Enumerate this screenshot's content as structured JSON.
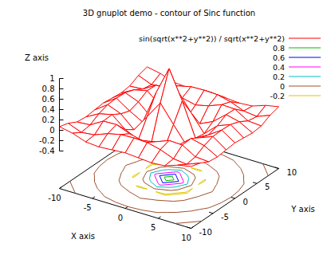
{
  "chart_data": {
    "type": "surface",
    "title": "3D gnuplot demo - contour of Sinc function",
    "x_label": "X axis",
    "y_label": "Y axis",
    "z_label": "Z axis",
    "x": [
      -10,
      -8,
      -6,
      -4,
      -2,
      0,
      2,
      4,
      6,
      8,
      10
    ],
    "y": [
      -10,
      -8,
      -6,
      -4,
      -2,
      0,
      2,
      4,
      6,
      8,
      10
    ],
    "xlim": [
      -10,
      10
    ],
    "ylim": [
      -10,
      10
    ],
    "zlim": [
      -0.4,
      1
    ],
    "xticks": [
      -10,
      -5,
      0,
      5,
      10
    ],
    "yticks": [
      -10,
      -5,
      0,
      5,
      10
    ],
    "zticks": [
      -0.4,
      -0.2,
      0,
      0.2,
      0.4,
      0.6,
      0.8,
      1
    ],
    "series": [
      {
        "name": "sin(sqrt(x**2+y**2)) / sqrt(x**2+y**2)",
        "color": "#ff0000",
        "values": [
          [
            0.07,
            0.02,
            -0.07,
            -0.09,
            -0.07,
            -0.05,
            -0.07,
            -0.09,
            -0.07,
            0.02,
            0.07
          ],
          [
            0.02,
            -0.08,
            -0.05,
            0.05,
            0.11,
            0.12,
            0.11,
            0.05,
            -0.05,
            -0.08,
            0.02
          ],
          [
            -0.07,
            -0.05,
            0.1,
            0.11,
            0.01,
            -0.05,
            0.01,
            0.11,
            0.1,
            -0.05,
            -0.07
          ],
          [
            -0.09,
            0.05,
            0.11,
            -0.1,
            -0.22,
            -0.19,
            -0.22,
            -0.1,
            0.11,
            0.05,
            -0.09
          ],
          [
            -0.07,
            0.11,
            0.01,
            -0.22,
            0.11,
            0.45,
            0.11,
            -0.22,
            0.01,
            0.11,
            -0.07
          ],
          [
            -0.05,
            0.12,
            -0.05,
            -0.19,
            0.45,
            1,
            0.45,
            -0.19,
            -0.05,
            0.12,
            -0.05
          ],
          [
            -0.07,
            0.11,
            0.01,
            -0.22,
            0.11,
            0.45,
            0.11,
            -0.22,
            0.01,
            0.11,
            -0.07
          ],
          [
            -0.09,
            0.05,
            0.11,
            -0.1,
            -0.22,
            -0.19,
            -0.22,
            -0.1,
            0.11,
            0.05,
            -0.09
          ],
          [
            -0.07,
            -0.05,
            0.1,
            0.11,
            0.01,
            -0.05,
            0.01,
            0.11,
            0.1,
            -0.05,
            -0.07
          ],
          [
            0.02,
            -0.08,
            -0.05,
            0.05,
            0.11,
            0.12,
            0.11,
            0.05,
            -0.05,
            -0.08,
            0.02
          ],
          [
            0.07,
            0.02,
            -0.07,
            -0.09,
            -0.07,
            -0.05,
            -0.07,
            -0.09,
            -0.07,
            0.02,
            0.07
          ]
        ]
      }
    ],
    "contours": {
      "levels": [
        0.8,
        0.6,
        0.4,
        0.2,
        0,
        -0.2
      ],
      "colors": [
        "#00c000",
        "#0000ff",
        "#ff00ff",
        "#00c0c0",
        "#a0522d",
        "#e0c800"
      ]
    }
  }
}
